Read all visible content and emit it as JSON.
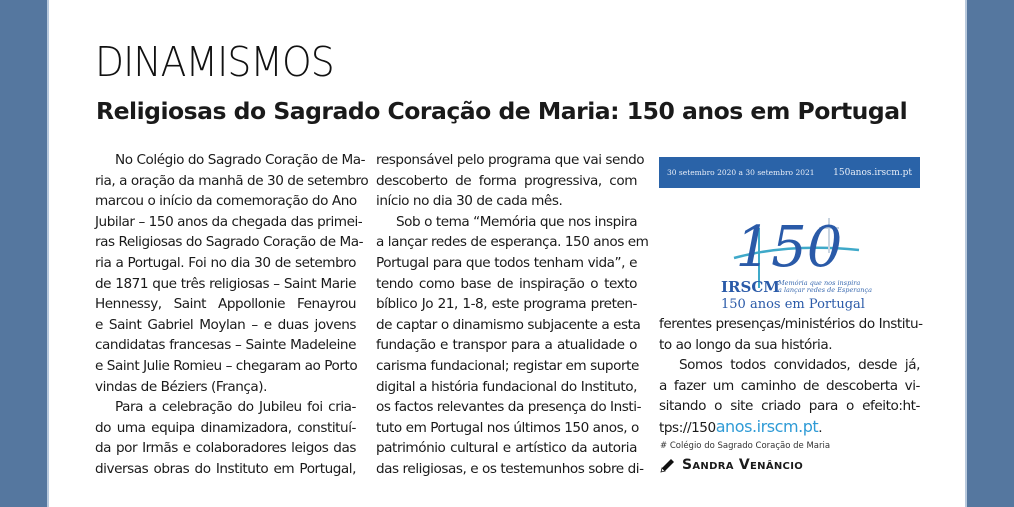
{
  "section": "DINAMISMOS",
  "headline": "Religiosas do Sagrado Coração de Maria: 150 anos em Portugal",
  "columns": [
    [
      {
        "t": "No Colégio do Sagrado Coração de Ma-",
        "i": true
      },
      {
        "t": "ria, a oração da manhã de 30 de setembro"
      },
      {
        "t": "marcou o início da comemoração do Ano"
      },
      {
        "t": "Jubilar – 150 anos da chegada das primei-"
      },
      {
        "t": "ras Religiosas do Sagrado Coração de Ma-"
      },
      {
        "t": "ria a Portugal. Foi no dia 30 de setembro"
      },
      {
        "t": "de 1871 que três religiosas – Saint Marie"
      },
      {
        "t": "Hennessy, Saint Appollonie Fenayrou"
      },
      {
        "t": "e Saint Gabriel Moylan – e duas jovens"
      },
      {
        "t": "candidatas francesas – Sainte Madeleine"
      },
      {
        "t": "e Saint Julie Romieu – chegaram ao Porto"
      },
      {
        "t": "vindas de Béziers (França).",
        "e": true
      },
      {
        "t": "Para a celebração do Jubileu foi cria-",
        "i": true
      },
      {
        "t": "do uma equipa dinamizadora, constituí-"
      },
      {
        "t": "da por Irmãs e colaboradores leigos das"
      },
      {
        "t": "diversas obras do Instituto em Portugal,"
      }
    ],
    [
      {
        "t": "responsável pelo programa que vai sendo"
      },
      {
        "t": "descoberto de forma progressiva, com"
      },
      {
        "t": "início no dia 30 de cada mês.",
        "e": true
      },
      {
        "t": "Sob o tema “Memória que nos inspira",
        "i": true
      },
      {
        "t": "a lançar redes de esperança. 150 anos em"
      },
      {
        "t": "Portugal para que todos tenham vida”, e"
      },
      {
        "t": "tendo como base de inspiração o texto"
      },
      {
        "t": "bíblico Jo 21, 1-8, este programa preten-"
      },
      {
        "t": "de captar o dinamismo subjacente a esta"
      },
      {
        "t": "fundação e transpor para a atualidade o"
      },
      {
        "t": "carisma fundacional; registar em suporte"
      },
      {
        "t": "digital a história fundacional do Instituto,"
      },
      {
        "t": "os factos relevantes da presença do Insti-"
      },
      {
        "t": "tuto em Portugal nos últimos 150 anos, o"
      },
      {
        "t": "património cultural e artístico da autoria"
      },
      {
        "t": "das religiosas, e os testemunhos sobre di-"
      }
    ],
    [
      {
        "t": "ferentes presenças/ministérios do Institu-"
      },
      {
        "t": "to ao longo da sua história.",
        "e": true
      },
      {
        "t": "Somos todos convidados, desde já,",
        "i": true
      },
      {
        "t": "a fazer um caminho de descoberta vi-"
      },
      {
        "t": "sitando o site criado para o efeito:ht-"
      }
    ]
  ],
  "last_line": {
    "prefix": "tps://150",
    "link": "anos.irscm.pt",
    "suffix": "."
  },
  "image": {
    "dates": "30 setembro 2020  a 30 setembro 2021",
    "url": "150anos.irscm.pt",
    "number": "150",
    "org": "IRSCM",
    "motto1": "Memória que nos inspira",
    "motto2": "a lançar redes de Esperança",
    "subtitle": "150 anos em Portugal"
  },
  "caption": "# Colégio do Sagrado Coração de Maria",
  "author": "Sandra Venâncio",
  "colors": {
    "side": "#55779f",
    "link": "#2f9bd6",
    "banner": "#2a63a8"
  }
}
